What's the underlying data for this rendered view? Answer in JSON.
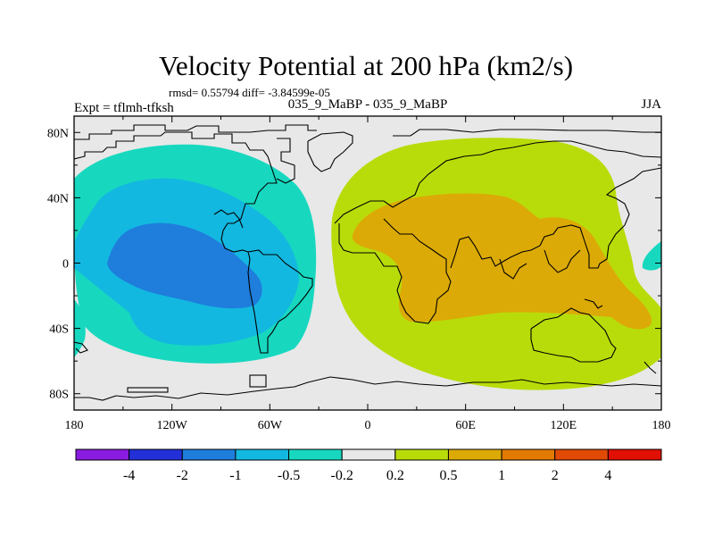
{
  "chart_data": {
    "type": "contour_map",
    "title": "Velocity Potential at 200 hPa (km2/s)",
    "stats_line": "rmsd= 0.55794 diff= -3.84599e-05",
    "left_label": "Expt = tflmh-tfksh",
    "center_label": "035_9_MaBP - 035_9_MaBP",
    "right_label": "JJA",
    "x_ticks": [
      "180",
      "120W",
      "60W",
      "0",
      "60E",
      "120E",
      "180"
    ],
    "y_ticks": [
      "80N",
      "40N",
      "0",
      "40S",
      "80S"
    ],
    "lon_range": [
      -180,
      180
    ],
    "lat_range": [
      -90,
      90
    ],
    "contour_levels": [
      "-4",
      "-2",
      "-1",
      "-0.5",
      "-0.2",
      "0.2",
      "0.5",
      "1",
      "2",
      "4"
    ],
    "colorbar_colors": [
      "#8a1be0",
      "#2330d8",
      "#1f7ddc",
      "#13b8e0",
      "#17d8bf",
      "#e8e8e8",
      "#b8dc0a",
      "#dcaa06",
      "#e27a04",
      "#e04a04",
      "#e01004"
    ],
    "regions": [
      {
        "name": "negative-outer",
        "range": "-0.5 to -0.2",
        "color": "#17d8bf"
      },
      {
        "name": "negative-mid",
        "range": "-1 to -0.5",
        "color": "#13b8e0"
      },
      {
        "name": "negative-core",
        "range": "-2 to -1",
        "color": "#1f7ddc"
      },
      {
        "name": "positive-outer",
        "range": "0.2 to 0.5",
        "color": "#b8dc0a"
      },
      {
        "name": "positive-core",
        "range": "0.5 to 1",
        "color": "#dcaa06"
      }
    ]
  }
}
